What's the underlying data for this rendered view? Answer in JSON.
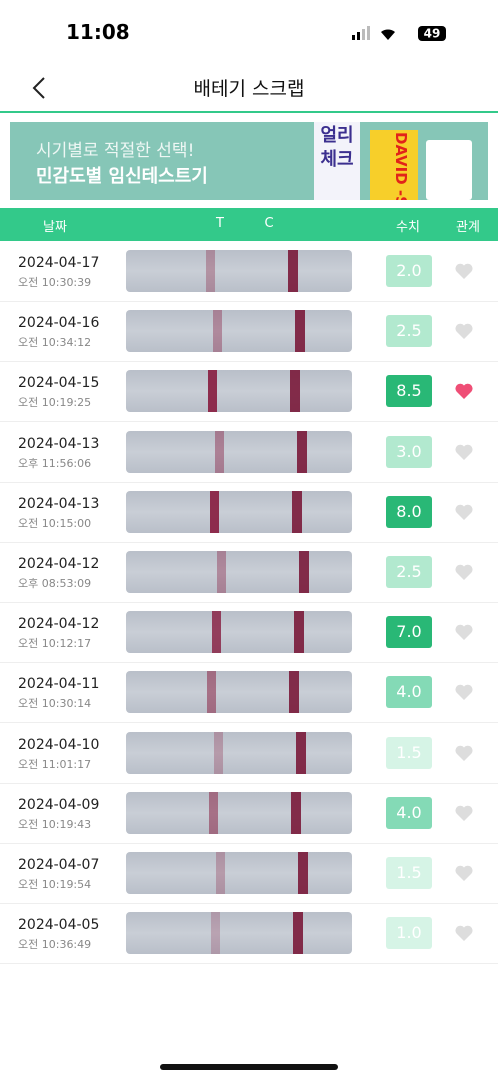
{
  "status_bar": {
    "time": "11:08",
    "battery": "49"
  },
  "header": {
    "title": "배테기 스크랩"
  },
  "banner": {
    "line1": "시기별로 적절한 선택!",
    "line2": "민감도별 임신테스트기",
    "product1": [
      "얼리",
      "체크"
    ],
    "product2": "DAVID -SUPE"
  },
  "table": {
    "columns": {
      "date": "날짜",
      "t": "T",
      "c": "C",
      "value": "수치",
      "relation": "관계"
    },
    "rows": [
      {
        "date": "2024-04-17",
        "time": "오전 10:30:39",
        "value": "2.0",
        "liked": false
      },
      {
        "date": "2024-04-16",
        "time": "오전 10:34:12",
        "value": "2.5",
        "liked": false
      },
      {
        "date": "2024-04-15",
        "time": "오전 10:19:25",
        "value": "8.5",
        "liked": true
      },
      {
        "date": "2024-04-13",
        "time": "오후 11:56:06",
        "value": "3.0",
        "liked": false
      },
      {
        "date": "2024-04-13",
        "time": "오전 10:15:00",
        "value": "8.0",
        "liked": false
      },
      {
        "date": "2024-04-12",
        "time": "오후 08:53:09",
        "value": "2.5",
        "liked": false
      },
      {
        "date": "2024-04-12",
        "time": "오전 10:12:17",
        "value": "7.0",
        "liked": false
      },
      {
        "date": "2024-04-11",
        "time": "오전 10:30:14",
        "value": "4.0",
        "liked": false
      },
      {
        "date": "2024-04-10",
        "time": "오전 11:01:17",
        "value": "1.5",
        "liked": false
      },
      {
        "date": "2024-04-09",
        "time": "오전 10:19:43",
        "value": "4.0",
        "liked": false
      },
      {
        "date": "2024-04-07",
        "time": "오전 10:19:54",
        "value": "1.5",
        "liked": false
      },
      {
        "date": "2024-04-05",
        "time": "오전 10:36:49",
        "value": "1.0",
        "liked": false
      }
    ]
  }
}
